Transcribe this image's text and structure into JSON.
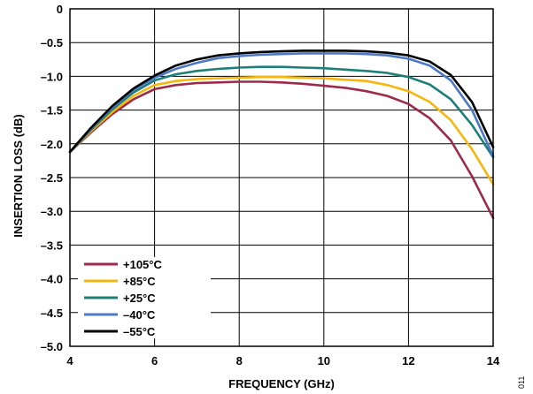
{
  "chart_data": {
    "type": "line",
    "title": "",
    "xlabel": "FREQUENCY (GHz)",
    "ylabel": "INSERTION LOSS (dB)",
    "xlim": [
      4,
      14
    ],
    "ylim": [
      -5.0,
      0
    ],
    "x_ticks": [
      4,
      6,
      8,
      10,
      12,
      14
    ],
    "y_ticks": [
      0,
      -0.5,
      -1.0,
      -1.5,
      -2.0,
      -2.5,
      -3.0,
      -3.5,
      -4.0,
      -4.5,
      -5.0
    ],
    "x_tick_labels": [
      "4",
      "6",
      "8",
      "10",
      "12",
      "14"
    ],
    "y_tick_labels": [
      "0",
      "–0.5",
      "–1.0",
      "–1.5",
      "–2.0",
      "–2.5",
      "–3.0",
      "–3.5",
      "–4.0",
      "–4.5",
      "–5.0"
    ],
    "grid": true,
    "legend_position": "bottom-left",
    "x": [
      4,
      4.5,
      5,
      5.5,
      6,
      6.5,
      7,
      7.5,
      8,
      8.5,
      9,
      9.5,
      10,
      10.5,
      11,
      11.5,
      12,
      12.5,
      13,
      13.5,
      14
    ],
    "series": [
      {
        "name": "+105°C",
        "color": "#9e2a4a",
        "values": [
          -2.12,
          -1.83,
          -1.56,
          -1.34,
          -1.19,
          -1.13,
          -1.1,
          -1.09,
          -1.08,
          -1.08,
          -1.09,
          -1.11,
          -1.14,
          -1.17,
          -1.22,
          -1.29,
          -1.41,
          -1.62,
          -1.95,
          -2.48,
          -3.1
        ]
      },
      {
        "name": "+85°C",
        "color": "#f5b70f",
        "values": [
          -2.12,
          -1.81,
          -1.53,
          -1.29,
          -1.13,
          -1.07,
          -1.04,
          -1.03,
          -1.02,
          -1.01,
          -1.01,
          -1.02,
          -1.03,
          -1.05,
          -1.07,
          -1.13,
          -1.22,
          -1.38,
          -1.65,
          -2.08,
          -2.6
        ]
      },
      {
        "name": "+25°C",
        "color": "#1e7f78",
        "values": [
          -2.12,
          -1.79,
          -1.49,
          -1.24,
          -1.06,
          -0.97,
          -0.92,
          -0.89,
          -0.87,
          -0.86,
          -0.86,
          -0.87,
          -0.88,
          -0.9,
          -0.92,
          -0.95,
          -1.01,
          -1.12,
          -1.34,
          -1.72,
          -2.2
        ]
      },
      {
        "name": "–40°C",
        "color": "#4c78c8",
        "values": [
          -2.12,
          -1.77,
          -1.46,
          -1.2,
          -1.02,
          -0.89,
          -0.8,
          -0.73,
          -0.7,
          -0.68,
          -0.67,
          -0.66,
          -0.66,
          -0.66,
          -0.67,
          -0.69,
          -0.74,
          -0.84,
          -1.06,
          -1.5,
          -2.18
        ]
      },
      {
        "name": "–55°C",
        "color": "#000000",
        "values": [
          -2.12,
          -1.76,
          -1.44,
          -1.18,
          -0.99,
          -0.84,
          -0.75,
          -0.69,
          -0.66,
          -0.64,
          -0.63,
          -0.62,
          -0.62,
          -0.62,
          -0.63,
          -0.65,
          -0.69,
          -0.78,
          -0.98,
          -1.38,
          -2.05
        ]
      }
    ]
  },
  "figure_code": "011"
}
